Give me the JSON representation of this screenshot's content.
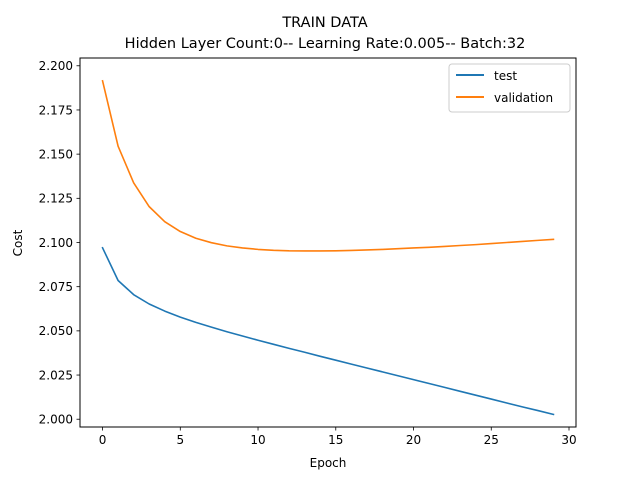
{
  "chart_data": {
    "type": "line",
    "title": "TRAIN DATA",
    "subtitle": "Hidden Layer Count:0-- Learning Rate:0.005-- Batch:32",
    "xlabel": "Epoch",
    "ylabel": "Cost",
    "xlim": [
      -1.45,
      30.45
    ],
    "ylim": [
      1.9956,
      2.2044
    ],
    "xticks": [
      0,
      5,
      10,
      15,
      20,
      25,
      30
    ],
    "xtick_labels": [
      "0",
      "5",
      "10",
      "15",
      "20",
      "25",
      "30"
    ],
    "yticks": [
      2.0,
      2.025,
      2.05,
      2.075,
      2.1,
      2.125,
      2.15,
      2.175,
      2.2
    ],
    "ytick_labels": [
      "2.000",
      "2.025",
      "2.050",
      "2.075",
      "2.100",
      "2.125",
      "2.150",
      "2.175",
      "2.200"
    ],
    "grid": false,
    "legend_position": "top-right",
    "x": [
      0,
      1,
      2,
      3,
      4,
      5,
      6,
      7,
      8,
      9,
      10,
      11,
      12,
      13,
      14,
      15,
      16,
      17,
      18,
      19,
      20,
      21,
      22,
      23,
      24,
      25,
      26,
      27,
      28,
      29
    ],
    "series": [
      {
        "name": "test",
        "color": "#1f77b4",
        "values": [
          2.097,
          2.0785,
          2.0705,
          2.0652,
          2.0612,
          2.0578,
          2.0548,
          2.0521,
          2.0495,
          2.0471,
          2.0447,
          2.0424,
          2.0401,
          2.0379,
          2.0356,
          2.0334,
          2.0312,
          2.029,
          2.0268,
          2.0246,
          2.0224,
          2.0202,
          2.018,
          2.0158,
          2.0136,
          2.0114,
          2.0092,
          2.007,
          2.0049,
          2.0027
        ]
      },
      {
        "name": "validation",
        "color": "#ff7f0e",
        "values": [
          2.1915,
          2.1545,
          2.1338,
          2.1203,
          2.1118,
          2.1062,
          2.1024,
          2.0999,
          2.0981,
          2.0969,
          2.0961,
          2.0956,
          2.0953,
          2.0952,
          2.0952,
          2.0953,
          2.0955,
          2.0958,
          2.0961,
          2.0965,
          2.0969,
          2.0973,
          2.0978,
          2.0983,
          2.0988,
          2.0994,
          2.1,
          2.1006,
          2.1012,
          2.1018
        ]
      }
    ]
  }
}
